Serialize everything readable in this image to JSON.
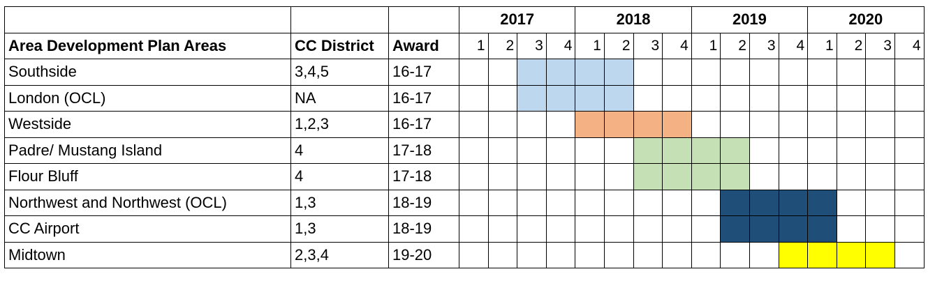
{
  "table": {
    "years": [
      "2017",
      "2018",
      "2019",
      "2020"
    ],
    "quarters": [
      "1",
      "2",
      "3",
      "4"
    ],
    "headers": {
      "area": "Area Development Plan Areas",
      "district": "CC District",
      "award": "Award"
    },
    "rows": [
      {
        "area": "Southside",
        "district": "3,4,5",
        "award": "16-17",
        "bar_start_quarter": 3,
        "bar_quarters": 4,
        "bar_color": "#bdd7ee"
      },
      {
        "area": "London (OCL)",
        "district": "NA",
        "award": "16-17",
        "bar_start_quarter": 3,
        "bar_quarters": 4,
        "bar_color": "#bdd7ee"
      },
      {
        "area": "Westside",
        "district": "1,2,3",
        "award": "16-17",
        "bar_start_quarter": 5,
        "bar_quarters": 4,
        "bar_color": "#f4b183"
      },
      {
        "area": "Padre/ Mustang Island",
        "district": "4",
        "award": "17-18",
        "bar_start_quarter": 7,
        "bar_quarters": 4,
        "bar_color": "#c5e0b4"
      },
      {
        "area": "Flour Bluff",
        "district": "4",
        "award": "17-18",
        "bar_start_quarter": 7,
        "bar_quarters": 4,
        "bar_color": "#c5e0b4"
      },
      {
        "area": "Northwest and Northwest (OCL)",
        "district": "1,3",
        "award": "18-19",
        "bar_start_quarter": 10,
        "bar_quarters": 4,
        "bar_color": "#1f4e79"
      },
      {
        "area": "CC Airport",
        "district": "1,3",
        "award": "18-19",
        "bar_start_quarter": 10,
        "bar_quarters": 4,
        "bar_color": "#1f4e79"
      },
      {
        "area": "Midtown",
        "district": "2,3,4",
        "award": "19-20",
        "bar_start_quarter": 12,
        "bar_quarters": 4,
        "bar_color": "#ffff00"
      }
    ]
  }
}
